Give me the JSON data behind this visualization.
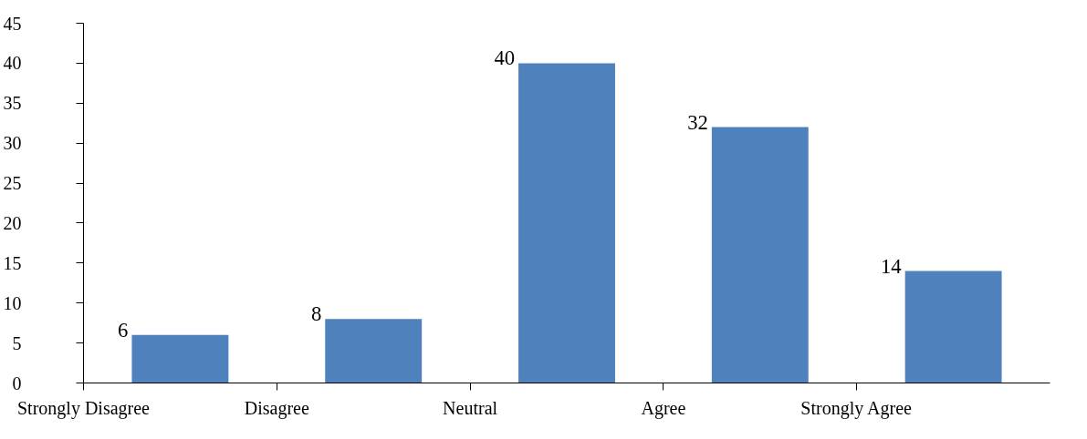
{
  "chart_data": {
    "type": "bar",
    "categories": [
      "Strongly Disagree",
      "Disagree",
      "Neutral",
      "Agree",
      "Strongly Agree"
    ],
    "values": [
      6,
      8,
      40,
      32,
      14
    ],
    "color": "#4f81bd",
    "ylim": [
      0,
      45
    ],
    "yticks": [
      0,
      5,
      10,
      15,
      20,
      25,
      30,
      35,
      40,
      45
    ],
    "data_labels": true,
    "grid": false
  }
}
